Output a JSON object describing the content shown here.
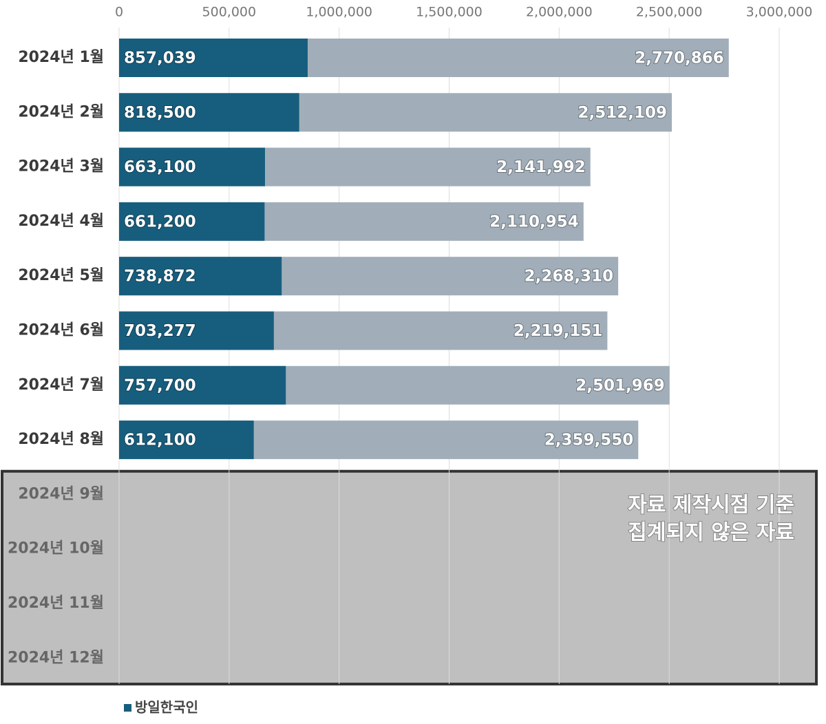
{
  "chart_data": {
    "type": "bar",
    "orientation": "horizontal",
    "overlap": true,
    "categories": [
      "2024년 1월",
      "2024년 2월",
      "2024년 3월",
      "2024년 4월",
      "2024년 5월",
      "2024년 6월",
      "2024년 7월",
      "2024년 8월",
      "2024년 9월",
      "2024년 10월",
      "2024년 11월",
      "2024년 12월"
    ],
    "series": [
      {
        "color": "#a1aeb9",
        "values": [
          2770866,
          2512109,
          2141992,
          2110954,
          2268310,
          2219151,
          2501969,
          2359550,
          null,
          null,
          null,
          null
        ],
        "value_labels": [
          "2,770,866",
          "2,512,109",
          "2,141,992",
          "2,110,954",
          "2,268,310",
          "2,219,151",
          "2,501,969",
          "2,359,550",
          null,
          null,
          null,
          null
        ]
      },
      {
        "name": "방일한국인",
        "color": "#175e7e",
        "values": [
          857039,
          818500,
          663100,
          661200,
          738872,
          703277,
          757700,
          612100,
          null,
          null,
          null,
          null
        ],
        "value_labels": [
          "857,039",
          "818,500",
          "663,100",
          "661,200",
          "738,872",
          "703,277",
          "757,700",
          "612,100",
          null,
          null,
          null,
          null
        ]
      }
    ],
    "xlim": [
      0,
      3000000
    ],
    "xticks": [
      0,
      {
        "value": 500000,
        "label": "500,000"
      },
      {
        "value": 1000000,
        "label": "1,000,000"
      },
      {
        "value": 1500000,
        "label": "1,500,000"
      },
      {
        "value": 2000000,
        "label": "2,000,000"
      },
      {
        "value": 2500000,
        "label": "2,500,000"
      },
      {
        "value": 3000000,
        "label": "3,000,000"
      }
    ],
    "grid": true,
    "legend": "bottom-left",
    "annotation": [
      "자료 제작시점 기준",
      "집계되지 않은 자료"
    ]
  }
}
